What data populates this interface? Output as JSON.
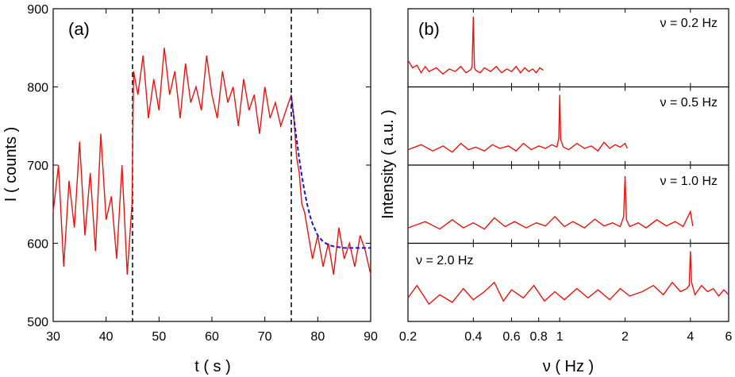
{
  "chart_data": [
    {
      "panel": "(a)",
      "type": "line",
      "xlabel": "t ( s )",
      "ylabel": "I ( counts )",
      "xlim": [
        30,
        90
      ],
      "ylim": [
        500,
        900
      ],
      "xticks": [
        "30",
        "40",
        "50",
        "60",
        "70",
        "80",
        "90"
      ],
      "yticks": [
        "500",
        "600",
        "700",
        "800",
        "900"
      ],
      "vertical_markers_x": [
        45,
        75
      ],
      "series": [
        {
          "color": "#e8140f",
          "x": [
            30,
            31,
            32,
            33,
            34,
            35,
            36,
            37,
            38,
            39,
            40,
            41,
            42,
            43,
            44,
            44.9,
            45.2,
            46,
            47,
            48,
            49,
            50,
            51,
            52,
            53,
            54,
            55,
            56,
            57,
            58,
            59,
            60,
            61,
            62,
            63,
            64,
            65,
            66,
            67,
            68,
            69,
            70,
            71,
            72,
            73,
            74,
            75,
            75.5,
            76,
            76.5,
            77,
            77.5,
            78,
            78.5,
            79,
            80,
            81,
            82,
            83,
            84,
            85,
            86,
            87,
            88,
            89,
            90
          ],
          "y": [
            640,
            700,
            570,
            680,
            620,
            730,
            610,
            690,
            590,
            740,
            630,
            660,
            580,
            700,
            560,
            650,
            820,
            790,
            840,
            760,
            810,
            770,
            850,
            790,
            820,
            760,
            830,
            780,
            800,
            770,
            840,
            790,
            760,
            820,
            780,
            800,
            750,
            810,
            770,
            790,
            740,
            800,
            760,
            780,
            750,
            770,
            790,
            760,
            710,
            690,
            650,
            640,
            620,
            600,
            580,
            610,
            570,
            600,
            560,
            620,
            580,
            600,
            570,
            610,
            590,
            560
          ]
        },
        {
          "color": "#1616d8",
          "dashed": true,
          "x": [
            75,
            75.5,
            76,
            76.5,
            77,
            77.5,
            78,
            78.5,
            79,
            80,
            81,
            82,
            83,
            84,
            85,
            86,
            87,
            88,
            89,
            90
          ],
          "y": [
            788,
            760,
            733,
            708,
            686,
            666,
            650,
            636,
            625,
            610,
            602,
            598,
            596,
            595,
            594,
            594,
            594,
            594,
            594,
            594
          ]
        }
      ]
    },
    {
      "panel": "(b)",
      "type": "line",
      "xlabel": "ν ( Hz )",
      "ylabel": "Intensity ( a.u. )",
      "xscale": "log",
      "xlim": [
        0.2,
        6
      ],
      "xticks": [
        "0.2",
        "0.4",
        "0.6",
        "0.8",
        "1",
        "2",
        "4",
        "6"
      ],
      "subplots": [
        {
          "label": "ν = 0.2 Hz",
          "color": "#e8140f",
          "x": [
            0.2,
            0.21,
            0.22,
            0.23,
            0.24,
            0.25,
            0.27,
            0.29,
            0.31,
            0.33,
            0.35,
            0.37,
            0.39,
            0.395,
            0.4,
            0.405,
            0.41,
            0.43,
            0.45,
            0.48,
            0.51,
            0.54,
            0.57,
            0.6,
            0.63,
            0.66,
            0.69,
            0.72,
            0.75,
            0.78,
            0.81,
            0.84
          ],
          "y": [
            0.3,
            0.18,
            0.22,
            0.1,
            0.2,
            0.12,
            0.18,
            0.08,
            0.16,
            0.12,
            0.2,
            0.1,
            0.15,
            0.2,
            1.0,
            0.18,
            0.14,
            0.1,
            0.18,
            0.12,
            0.2,
            0.1,
            0.16,
            0.12,
            0.2,
            0.1,
            0.18,
            0.12,
            0.16,
            0.1,
            0.18,
            0.14
          ]
        },
        {
          "label": "ν = 0.5 Hz",
          "color": "#e8140f",
          "x": [
            0.2,
            0.23,
            0.26,
            0.29,
            0.32,
            0.35,
            0.38,
            0.41,
            0.45,
            0.49,
            0.53,
            0.58,
            0.63,
            0.68,
            0.74,
            0.8,
            0.86,
            0.92,
            0.97,
            0.99,
            1.0,
            1.01,
            1.04,
            1.1,
            1.2,
            1.3,
            1.4,
            1.5,
            1.6,
            1.7,
            1.8,
            1.9,
            2.0,
            2.05
          ],
          "y": [
            0.12,
            0.2,
            0.1,
            0.18,
            0.08,
            0.22,
            0.12,
            0.16,
            0.1,
            0.2,
            0.14,
            0.18,
            0.1,
            0.22,
            0.12,
            0.18,
            0.14,
            0.2,
            0.16,
            0.3,
            1.0,
            0.28,
            0.16,
            0.12,
            0.22,
            0.14,
            0.18,
            0.1,
            0.24,
            0.14,
            0.2,
            0.16,
            0.22,
            0.14
          ]
        },
        {
          "label": "ν = 1.0 Hz",
          "color": "#e8140f",
          "x": [
            0.2,
            0.24,
            0.28,
            0.32,
            0.36,
            0.4,
            0.45,
            0.5,
            0.56,
            0.62,
            0.7,
            0.78,
            0.86,
            0.95,
            1.05,
            1.15,
            1.3,
            1.45,
            1.6,
            1.75,
            1.9,
            1.97,
            2.0,
            2.03,
            2.1,
            2.3,
            2.5,
            2.8,
            3.1,
            3.4,
            3.7,
            4.0,
            4.1
          ],
          "y": [
            0.12,
            0.22,
            0.1,
            0.25,
            0.12,
            0.2,
            0.1,
            0.28,
            0.14,
            0.22,
            0.12,
            0.2,
            0.15,
            0.3,
            0.14,
            0.22,
            0.12,
            0.26,
            0.15,
            0.2,
            0.14,
            0.3,
            0.95,
            0.25,
            0.14,
            0.2,
            0.12,
            0.25,
            0.15,
            0.22,
            0.14,
            0.38,
            0.15
          ]
        },
        {
          "label": "ν = 2.0 Hz",
          "color": "#e8140f",
          "x": [
            0.2,
            0.22,
            0.25,
            0.28,
            0.32,
            0.36,
            0.4,
            0.45,
            0.5,
            0.55,
            0.6,
            0.68,
            0.76,
            0.85,
            0.95,
            1.05,
            1.2,
            1.35,
            1.5,
            1.7,
            1.9,
            2.1,
            2.4,
            2.7,
            3.0,
            3.3,
            3.6,
            3.85,
            3.95,
            4.0,
            4.05,
            4.2,
            4.5,
            4.8,
            5.1,
            5.4,
            5.7,
            6.0
          ],
          "y": [
            0.25,
            0.45,
            0.15,
            0.3,
            0.18,
            0.4,
            0.22,
            0.35,
            0.5,
            0.2,
            0.38,
            0.25,
            0.45,
            0.2,
            0.35,
            0.22,
            0.4,
            0.25,
            0.38,
            0.22,
            0.4,
            0.28,
            0.35,
            0.45,
            0.3,
            0.5,
            0.35,
            0.4,
            0.45,
            1.0,
            0.5,
            0.3,
            0.45,
            0.35,
            0.4,
            0.28,
            0.38,
            0.3
          ]
        }
      ]
    }
  ]
}
